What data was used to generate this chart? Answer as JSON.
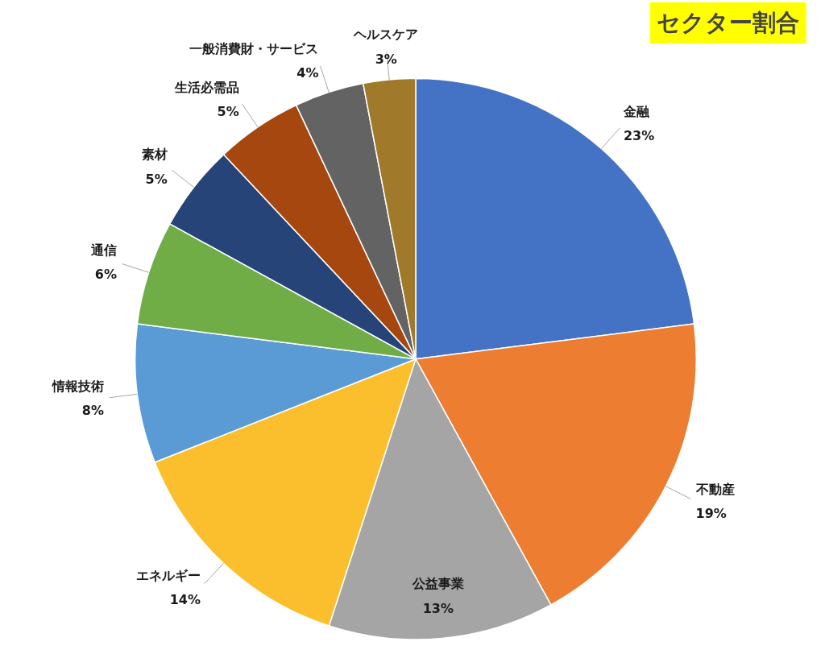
{
  "chart_data": {
    "type": "pie",
    "title": "セクター割合",
    "categories": [
      "金融",
      "不動産",
      "公益事業",
      "エネルギー",
      "情報技術",
      "通信",
      "素材",
      "生活必需品",
      "一般消費財・サービス",
      "ヘルスケア"
    ],
    "values": [
      23,
      19,
      13,
      14,
      8,
      6,
      5,
      5,
      4,
      3
    ],
    "value_labels": [
      "23%",
      "19%",
      "13%",
      "14%",
      "8%",
      "6%",
      "5%",
      "5%",
      "4%",
      "3%"
    ],
    "colors": [
      "#4472c4",
      "#ed7d31",
      "#a5a5a5",
      "#fbbf2e",
      "#5b9bd5",
      "#70ad47",
      "#264478",
      "#a5470f",
      "#636363",
      "#a07a2a"
    ],
    "legend": false
  }
}
